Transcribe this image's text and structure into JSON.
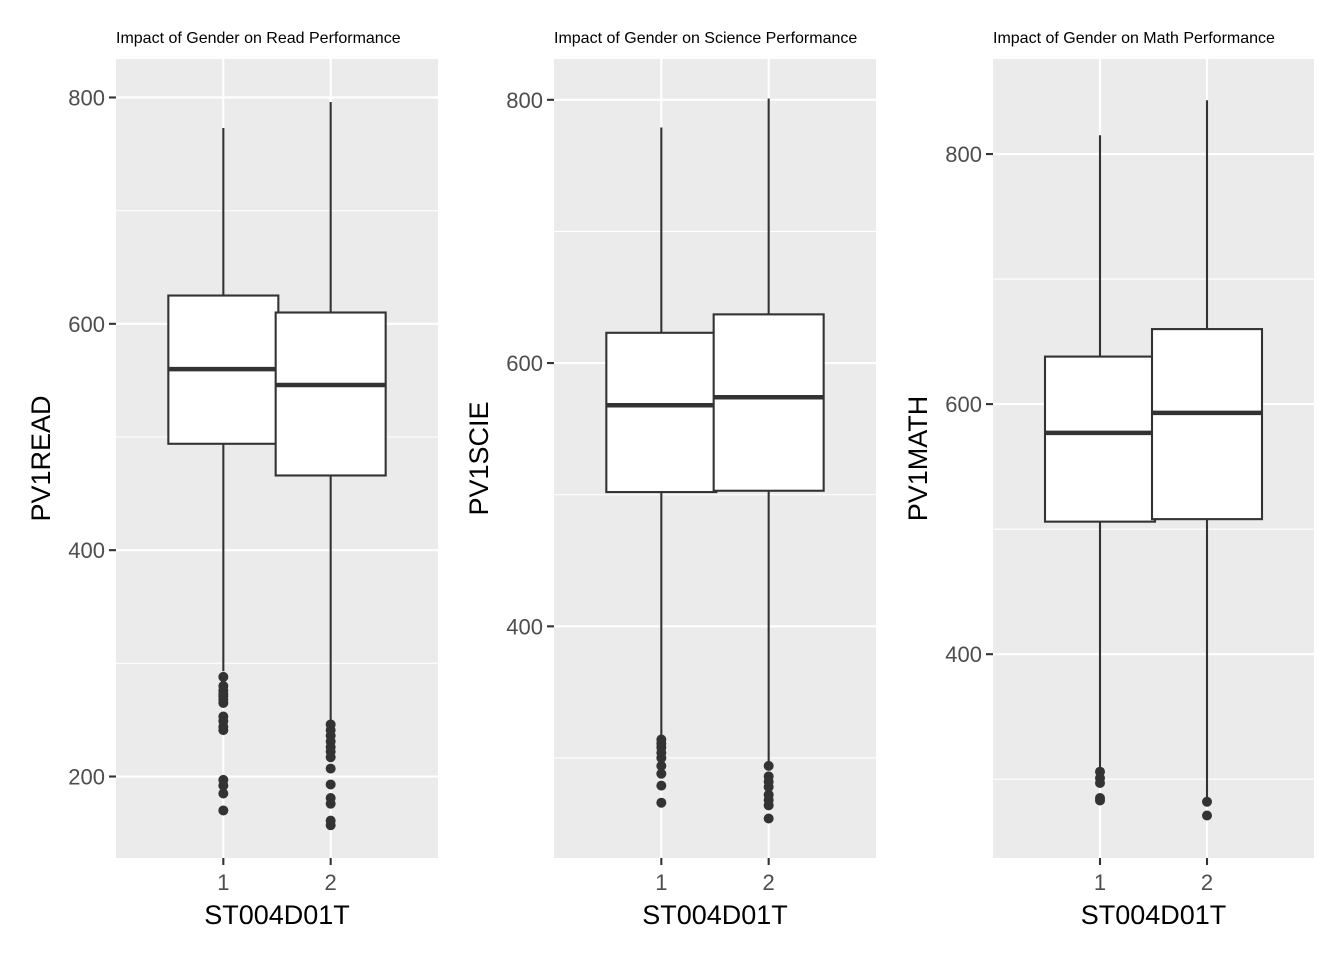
{
  "chart_data": [
    {
      "type": "boxplot",
      "title": "Impact of Gender on Read Performance",
      "xlabel": "ST004D01T",
      "ylabel": "PV1READ",
      "categories": [
        "1",
        "2"
      ],
      "ylim": [
        128,
        834
      ],
      "yticks": [
        200,
        400,
        600,
        800
      ],
      "grid": true,
      "boxes": [
        {
          "category": "1",
          "lower_whisker": 293,
          "q1": 494,
          "median": 560,
          "q3": 625,
          "upper_whisker": 773,
          "outliers": [
            288,
            280,
            276,
            273,
            271,
            268,
            265,
            253,
            249,
            244,
            241,
            197,
            192,
            185,
            170
          ]
        },
        {
          "category": "2",
          "lower_whisker": 245,
          "q1": 466,
          "median": 546,
          "q3": 610,
          "upper_whisker": 796,
          "outliers": [
            246,
            241,
            236,
            231,
            226,
            222,
            217,
            207,
            193,
            181,
            176,
            161,
            157
          ]
        }
      ]
    },
    {
      "type": "boxplot",
      "title": "Impact of Gender on Science Performance",
      "xlabel": "ST004D01T",
      "ylabel": "PV1SCIE",
      "categories": [
        "1",
        "2"
      ],
      "ylim": [
        224,
        831
      ],
      "yticks": [
        400,
        600,
        800
      ],
      "grid": true,
      "boxes": [
        {
          "category": "1",
          "lower_whisker": 314,
          "q1": 502,
          "median": 568,
          "q3": 623,
          "upper_whisker": 779,
          "outliers": [
            314,
            311,
            308,
            304,
            300,
            294,
            288,
            279,
            266
          ]
        },
        {
          "category": "2",
          "lower_whisker": 294,
          "q1": 503,
          "median": 574,
          "q3": 637,
          "upper_whisker": 801,
          "outliers": [
            294,
            286,
            282,
            278,
            272,
            268,
            264,
            254
          ]
        }
      ]
    },
    {
      "type": "boxplot",
      "title": "Impact of Gender on Math Performance",
      "xlabel": "ST004D01T",
      "ylabel": "PV1MATH",
      "categories": [
        "1",
        "2"
      ],
      "ylim": [
        237,
        876
      ],
      "yticks": [
        400,
        600,
        800
      ],
      "grid": true,
      "boxes": [
        {
          "category": "1",
          "lower_whisker": 306,
          "q1": 506,
          "median": 577,
          "q3": 638,
          "upper_whisker": 815,
          "outliers": [
            306,
            301,
            297,
            285,
            283
          ]
        },
        {
          "category": "2",
          "lower_whisker": 282,
          "q1": 508,
          "median": 593,
          "q3": 660,
          "upper_whisker": 843,
          "outliers": [
            282,
            271
          ]
        }
      ]
    }
  ]
}
